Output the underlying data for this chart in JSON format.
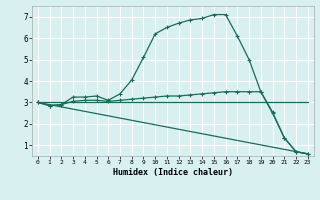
{
  "xlabel": "Humidex (Indice chaleur)",
  "bg_color": "#d8f0f0",
  "grid_color": "#ffffff",
  "line_color": "#1a6b5a",
  "xlim": [
    -0.5,
    23.5
  ],
  "ylim": [
    0.5,
    7.5
  ],
  "xticks": [
    0,
    1,
    2,
    3,
    4,
    5,
    6,
    7,
    8,
    9,
    10,
    11,
    12,
    13,
    14,
    15,
    16,
    17,
    18,
    19,
    20,
    21,
    22,
    23
  ],
  "yticks": [
    1,
    2,
    3,
    4,
    5,
    6,
    7
  ],
  "line1_x": [
    0,
    1,
    2,
    3,
    4,
    5,
    6,
    7,
    8,
    9,
    10,
    11,
    12,
    13,
    14,
    15,
    16,
    17,
    18,
    19,
    20,
    21,
    22,
    23
  ],
  "line1_y": [
    3.0,
    2.85,
    2.9,
    3.25,
    3.25,
    3.3,
    3.1,
    3.4,
    4.05,
    5.1,
    6.2,
    6.5,
    6.7,
    6.85,
    6.92,
    7.1,
    7.1,
    6.1,
    5.0,
    3.5,
    2.55,
    1.35,
    0.7,
    0.6
  ],
  "line2_x": [
    0,
    1,
    2,
    3,
    4,
    5,
    6,
    7,
    8,
    9,
    10,
    11,
    12,
    13,
    14,
    15,
    16,
    17,
    18,
    19,
    20,
    21,
    22,
    23
  ],
  "line2_y": [
    3.0,
    2.85,
    2.9,
    3.05,
    3.1,
    3.1,
    3.05,
    3.1,
    3.15,
    3.2,
    3.25,
    3.3,
    3.3,
    3.35,
    3.4,
    3.45,
    3.5,
    3.5,
    3.5,
    3.5,
    2.5,
    1.35,
    0.7,
    0.6
  ],
  "line3_x": [
    0,
    23
  ],
  "line3_y": [
    3.0,
    0.6
  ],
  "line4_x": [
    0,
    23
  ],
  "line4_y": [
    3.0,
    3.0
  ]
}
